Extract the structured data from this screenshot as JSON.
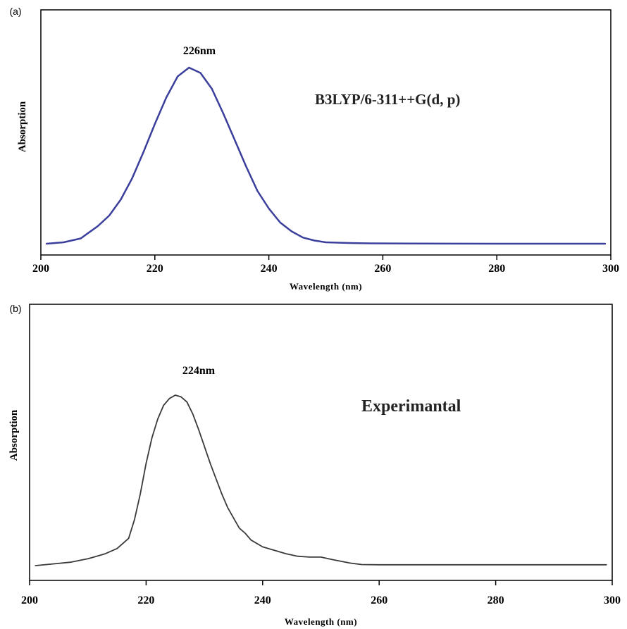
{
  "chart_data": [
    {
      "type": "line",
      "panel_label": "(a)",
      "xlabel": "Wavelength (nm)",
      "ylabel": "Absorption",
      "xlim": [
        200,
        300
      ],
      "ylim": [
        0,
        1.0
      ],
      "xticks": [
        200,
        220,
        240,
        260,
        280,
        300
      ],
      "grid": false,
      "annotations": [
        {
          "text": "226nm",
          "x": 226,
          "y": 1.0,
          "kind": "peak"
        },
        {
          "text": "B3LYP/6-311++G(d, p)",
          "kind": "method"
        }
      ],
      "series": [
        {
          "color": "#3b3f9c",
          "x": [
            201,
            204,
            207,
            210,
            212,
            214,
            216,
            218,
            220,
            222,
            224,
            226,
            228,
            230,
            232,
            234,
            236,
            238,
            240,
            242,
            244,
            246,
            248,
            250,
            254,
            258,
            265,
            280,
            299
          ],
          "y": [
            0.0,
            0.008,
            0.03,
            0.1,
            0.16,
            0.25,
            0.37,
            0.52,
            0.68,
            0.83,
            0.95,
            1.0,
            0.97,
            0.88,
            0.74,
            0.59,
            0.44,
            0.3,
            0.2,
            0.12,
            0.07,
            0.035,
            0.018,
            0.008,
            0.004,
            0.002,
            0.001,
            0.0,
            0.0
          ]
        }
      ]
    },
    {
      "type": "line",
      "panel_label": "(b)",
      "xlabel": "Wavelength (nm)",
      "ylabel": "Absorption",
      "xlim": [
        200,
        300
      ],
      "ylim": [
        0,
        1.0
      ],
      "xticks": [
        200,
        220,
        240,
        260,
        280,
        300
      ],
      "grid": false,
      "annotations": [
        {
          "text": "224nm",
          "x": 225,
          "y": 1.0,
          "kind": "peak"
        },
        {
          "text": "Experimantal",
          "kind": "method"
        }
      ],
      "series": [
        {
          "color": "#3a3a3a",
          "x": [
            201,
            204,
            207,
            210,
            213,
            215,
            217,
            218,
            219,
            220,
            221,
            222,
            223,
            224,
            225,
            226,
            227,
            228,
            229,
            230,
            231,
            232,
            233,
            234,
            235,
            236,
            237,
            238,
            240,
            242,
            244,
            246,
            248,
            250,
            252,
            255,
            257,
            260,
            280,
            299
          ],
          "y": [
            0.0,
            0.01,
            0.02,
            0.04,
            0.07,
            0.1,
            0.16,
            0.27,
            0.42,
            0.6,
            0.75,
            0.86,
            0.94,
            0.98,
            1.0,
            0.99,
            0.96,
            0.89,
            0.8,
            0.7,
            0.6,
            0.51,
            0.42,
            0.34,
            0.28,
            0.22,
            0.19,
            0.15,
            0.11,
            0.09,
            0.07,
            0.055,
            0.05,
            0.05,
            0.035,
            0.015,
            0.006,
            0.005,
            0.005,
            0.005
          ]
        }
      ]
    }
  ]
}
